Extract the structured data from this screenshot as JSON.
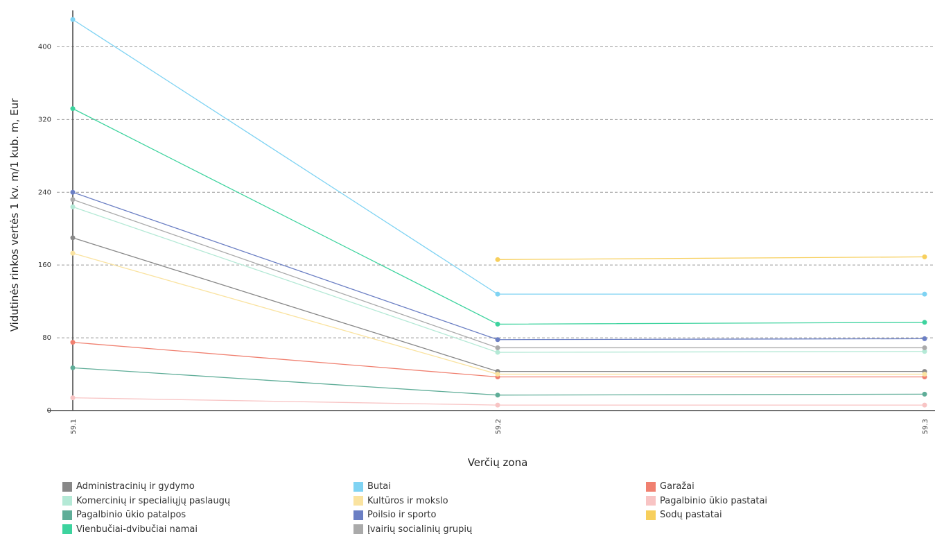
{
  "chart_data": {
    "type": "line",
    "xlabel": "Verčių zona",
    "ylabel": "Vidutinės rinkos vertės 1 kv. m/1 kub. m, Eur",
    "categories": [
      "59.1",
      "59.2",
      "59.3"
    ],
    "ylim": [
      0,
      430
    ],
    "yticks": [
      0,
      80,
      160,
      240,
      320,
      400
    ],
    "grid": "horizontal dashed",
    "legend_position": "bottom",
    "series": [
      {
        "name": "Administracinių ir gydymo",
        "color": "#888888",
        "values": [
          190,
          43,
          43
        ]
      },
      {
        "name": "Butai",
        "color": "#7fd3f3",
        "values": [
          430,
          128,
          128
        ]
      },
      {
        "name": "Garažai",
        "color": "#f08070",
        "values": [
          75,
          37,
          37
        ]
      },
      {
        "name": "Komercinių ir specialiųjų paslaugų",
        "color": "#b4e9d6",
        "values": [
          224,
          64,
          65
        ]
      },
      {
        "name": "Kultūros ir mokslo",
        "color": "#fae3a0",
        "values": [
          173,
          40,
          40
        ]
      },
      {
        "name": "Pagalbinio ūkio pastatai",
        "color": "#f8c4c4",
        "values": [
          14,
          6,
          6
        ]
      },
      {
        "name": "Pagalbinio ūkio patalpos",
        "color": "#5fad98",
        "values": [
          47,
          17,
          18
        ]
      },
      {
        "name": "Poilsio ir sporto",
        "color": "#6b7fc4",
        "values": [
          240,
          78,
          79
        ]
      },
      {
        "name": "Sodų pastatai",
        "color": "#f7cf5c",
        "values": [
          null,
          166,
          169
        ]
      },
      {
        "name": "Vienbučiai-dvibučiai namai",
        "color": "#3dd39e",
        "values": [
          332,
          95,
          97
        ]
      },
      {
        "name": "Įvairių socialinių grupių",
        "color": "#aaaaaa",
        "values": [
          232,
          69,
          69
        ]
      }
    ]
  }
}
